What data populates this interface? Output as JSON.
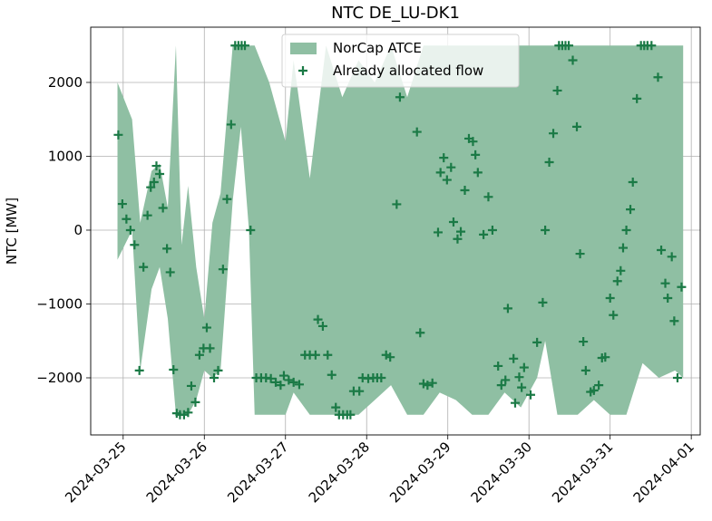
{
  "chart_data": {
    "type": "mixed",
    "title": "NTC DE_LU-DK1",
    "ylabel": "NTC [MW]",
    "xlim": [
      -0.4,
      7.11
    ],
    "ylim": [
      -2773,
      2748
    ],
    "xticks": [
      {
        "value": 0,
        "label": "2024-03-25"
      },
      {
        "value": 1,
        "label": "2024-03-26"
      },
      {
        "value": 2,
        "label": "2024-03-27"
      },
      {
        "value": 3,
        "label": "2024-03-28"
      },
      {
        "value": 4,
        "label": "2024-03-29"
      },
      {
        "value": 5,
        "label": "2024-03-30"
      },
      {
        "value": 6,
        "label": "2024-03-31"
      },
      {
        "value": 7,
        "label": "2024-04-01"
      }
    ],
    "yticks": [
      {
        "value": -2000,
        "label": "−2000"
      },
      {
        "value": -1000,
        "label": "−1000"
      },
      0,
      1000,
      2000
    ],
    "grid": true,
    "legend": "upper center",
    "series": [
      {
        "name": "NorCap ATCE",
        "type": "fill_between",
        "color": "#8fbfa3",
        "x": [
          -0.07,
          0.11,
          0.21,
          0.35,
          0.45,
          0.55,
          0.65,
          0.72,
          0.8,
          0.9,
          1.0,
          1.1,
          1.2,
          1.35,
          1.45,
          1.55,
          1.62,
          1.8,
          2.0,
          2.1,
          2.3,
          2.5,
          2.7,
          2.9,
          3.1,
          3.3,
          3.5,
          3.7,
          3.9,
          4.1,
          4.3,
          4.5,
          4.7,
          4.9,
          5.1,
          5.2,
          5.35,
          5.6,
          5.8,
          6.0,
          6.2,
          6.4,
          6.6,
          6.8,
          6.9
        ],
        "upper": [
          2000,
          1500,
          100,
          800,
          900,
          300,
          2500,
          -200,
          600,
          -500,
          -1200,
          100,
          500,
          2500,
          2500,
          2500,
          2500,
          2000,
          1200,
          2300,
          700,
          2500,
          1800,
          2300,
          2000,
          2500,
          1800,
          2500,
          2500,
          2500,
          2500,
          2500,
          2500,
          2500,
          2500,
          2500,
          2500,
          2500,
          2500,
          2500,
          2500,
          2500,
          2500,
          2500,
          2500
        ],
        "lower": [
          -400,
          0,
          -1900,
          -800,
          -500,
          -1200,
          -2500,
          -2500,
          -2500,
          -2300,
          -1900,
          -2000,
          -1900,
          400,
          1400,
          0,
          -2500,
          -2500,
          -2500,
          -2200,
          -2500,
          -2500,
          -2500,
          -2500,
          -2300,
          -2100,
          -2500,
          -2500,
          -2200,
          -2300,
          -2500,
          -2500,
          -2200,
          -2400,
          -2000,
          -1500,
          -2500,
          -2500,
          -2300,
          -2500,
          -2500,
          -1800,
          -2000,
          -1900,
          -2000
        ]
      },
      {
        "name": "Already allocated flow",
        "type": "scatter",
        "color": "#1b7a46",
        "x": [
          -0.06,
          -0.01,
          0.04,
          0.09,
          0.14,
          0.2,
          0.25,
          0.3,
          0.34,
          0.38,
          0.41,
          0.45,
          0.49,
          0.54,
          0.58,
          0.62,
          0.66,
          0.7,
          0.75,
          0.8,
          0.84,
          0.89,
          0.94,
          0.99,
          1.03,
          1.07,
          1.12,
          1.17,
          1.23,
          1.28,
          1.33,
          1.38,
          1.42,
          1.46,
          1.5,
          1.57,
          1.64,
          1.7,
          1.76,
          1.82,
          1.88,
          1.94,
          1.98,
          2.04,
          2.1,
          2.17,
          2.24,
          2.3,
          2.37,
          2.4,
          2.46,
          2.52,
          2.57,
          2.62,
          2.66,
          2.71,
          2.76,
          2.8,
          2.84,
          2.91,
          2.95,
          3.02,
          3.08,
          3.13,
          3.18,
          3.24,
          3.29,
          3.37,
          3.41,
          3.62,
          3.66,
          3.7,
          3.75,
          3.81,
          3.88,
          3.91,
          3.95,
          3.99,
          4.04,
          4.07,
          4.12,
          4.16,
          4.21,
          4.26,
          4.31,
          4.34,
          4.37,
          4.44,
          4.5,
          4.55,
          4.62,
          4.66,
          4.71,
          4.74,
          4.81,
          4.83,
          4.88,
          4.91,
          4.94,
          5.02,
          5.1,
          5.17,
          5.2,
          5.25,
          5.3,
          5.35,
          5.37,
          5.41,
          5.45,
          5.49,
          5.54,
          5.59,
          5.63,
          5.67,
          5.7,
          5.76,
          5.8,
          5.86,
          5.9,
          5.94,
          6.0,
          6.04,
          6.09,
          6.13,
          6.16,
          6.2,
          6.25,
          6.28,
          6.33,
          6.38,
          6.42,
          6.46,
          6.51,
          6.59,
          6.63,
          6.68,
          6.71,
          6.76,
          6.79,
          6.83,
          6.88
        ],
        "values": [
          1290,
          355,
          150,
          0,
          -200,
          -1900,
          -500,
          200,
          580,
          650,
          870,
          760,
          300,
          -250,
          -570,
          -1890,
          -2480,
          -2500,
          -2500,
          -2470,
          -2110,
          -2330,
          -1690,
          -1600,
          -1320,
          -1600,
          -2000,
          -1900,
          -530,
          420,
          1430,
          2500,
          2500,
          2500,
          2500,
          0,
          -2000,
          -2000,
          -2000,
          -2010,
          -2060,
          -2100,
          -1970,
          -2030,
          -2060,
          -2090,
          -1690,
          -1690,
          -1690,
          -1210,
          -1300,
          -1690,
          -1960,
          -2400,
          -2500,
          -2500,
          -2500,
          -2500,
          -2180,
          -2180,
          -2000,
          -2010,
          -2000,
          -2000,
          -2000,
          -1690,
          -1720,
          350,
          1800,
          1330,
          -1390,
          -2080,
          -2100,
          -2070,
          -30,
          780,
          980,
          680,
          850,
          110,
          -120,
          -20,
          540,
          1240,
          1200,
          1020,
          780,
          -60,
          450,
          0,
          -1840,
          -2100,
          -2030,
          -1060,
          -1740,
          -2340,
          -1990,
          -2130,
          -1860,
          -2230,
          -1520,
          -980,
          0,
          920,
          1310,
          1890,
          2500,
          2500,
          2500,
          2500,
          2300,
          1400,
          -320,
          -1510,
          -1900,
          -2190,
          -2170,
          -2100,
          -1730,
          -1720,
          -920,
          -1150,
          -690,
          -550,
          -240,
          0,
          280,
          650,
          1780,
          2500,
          2500,
          2500,
          2500,
          2070,
          -270,
          -720,
          -920,
          -360,
          -1230,
          -2000,
          -770
        ]
      }
    ]
  }
}
